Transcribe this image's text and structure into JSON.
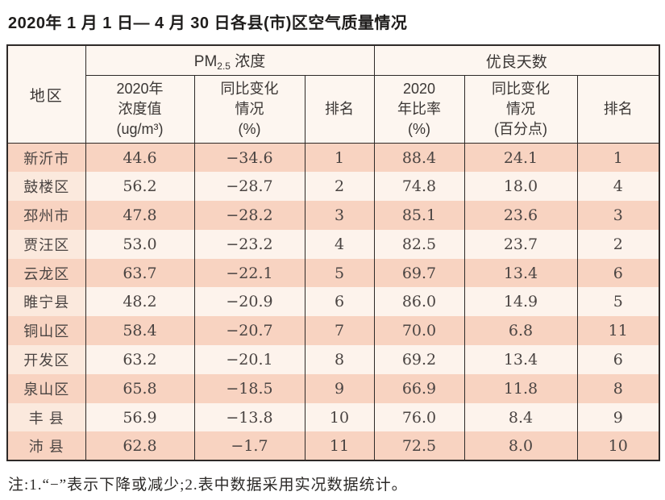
{
  "title": "2020年 1 月 1 日— 4 月 30 日各县(市)区空气质量情况",
  "table": {
    "region_header": "地区",
    "group_pm": {
      "prefix": "PM",
      "sub": "2.5",
      "suffix": " 浓度"
    },
    "group_good": "优良天数",
    "sub_headers": {
      "pm_value": {
        "l1": "2020年",
        "l2": "浓度值",
        "l3": "(ug/m³)"
      },
      "pm_change": {
        "l1": "同比变化",
        "l2": "情况",
        "l3": "(%)"
      },
      "pm_rank": "排名",
      "good_ratio": {
        "l1": "2020",
        "l2": "年比率",
        "l3": "(%)"
      },
      "good_change": {
        "l1": "同比变化",
        "l2": "情况",
        "l3": "(百分点)"
      },
      "good_rank": "排名"
    },
    "rows": [
      {
        "region": "新沂市",
        "pm_value": "44.6",
        "pm_change": "−34.6",
        "pm_rank": "1",
        "good_ratio": "88.4",
        "good_change": "24.1",
        "good_rank": "1"
      },
      {
        "region": "鼓楼区",
        "pm_value": "56.2",
        "pm_change": "−28.7",
        "pm_rank": "2",
        "good_ratio": "74.8",
        "good_change": "18.0",
        "good_rank": "4"
      },
      {
        "region": "邳州市",
        "pm_value": "47.8",
        "pm_change": "−28.2",
        "pm_rank": "3",
        "good_ratio": "85.1",
        "good_change": "23.6",
        "good_rank": "3"
      },
      {
        "region": "贾汪区",
        "pm_value": "53.0",
        "pm_change": "−23.2",
        "pm_rank": "4",
        "good_ratio": "82.5",
        "good_change": "23.7",
        "good_rank": "2"
      },
      {
        "region": "云龙区",
        "pm_value": "63.7",
        "pm_change": "−22.1",
        "pm_rank": "5",
        "good_ratio": "69.7",
        "good_change": "13.4",
        "good_rank": "6"
      },
      {
        "region": "睢宁县",
        "pm_value": "48.2",
        "pm_change": "−20.9",
        "pm_rank": "6",
        "good_ratio": "86.0",
        "good_change": "14.9",
        "good_rank": "5"
      },
      {
        "region": "铜山区",
        "pm_value": "58.4",
        "pm_change": "−20.7",
        "pm_rank": "7",
        "good_ratio": "70.0",
        "good_change": "6.8",
        "good_rank": "11"
      },
      {
        "region": "开发区",
        "pm_value": "63.2",
        "pm_change": "−20.1",
        "pm_rank": "8",
        "good_ratio": "69.2",
        "good_change": "13.4",
        "good_rank": "6"
      },
      {
        "region": "泉山区",
        "pm_value": "65.8",
        "pm_change": "−18.5",
        "pm_rank": "9",
        "good_ratio": "66.9",
        "good_change": "11.8",
        "good_rank": "8"
      },
      {
        "region": "丰 县",
        "pm_value": "56.9",
        "pm_change": "−13.8",
        "pm_rank": "10",
        "good_ratio": "76.0",
        "good_change": "8.4",
        "good_rank": "9"
      },
      {
        "region": "沛 县",
        "pm_value": "62.8",
        "pm_change": "−1.7",
        "pm_rank": "11",
        "good_ratio": "72.5",
        "good_change": "8.0",
        "good_rank": "10"
      }
    ]
  },
  "footnote": "注:1.“−”表示下降或减少;2.表中数据采用实况数据统计。",
  "colors": {
    "row_odd": "#f8d3c1",
    "row_even": "#fdf3ec",
    "region_even": "#fbe9dd",
    "header_bg": "#fdf6f0",
    "border": "#2e2a28"
  }
}
